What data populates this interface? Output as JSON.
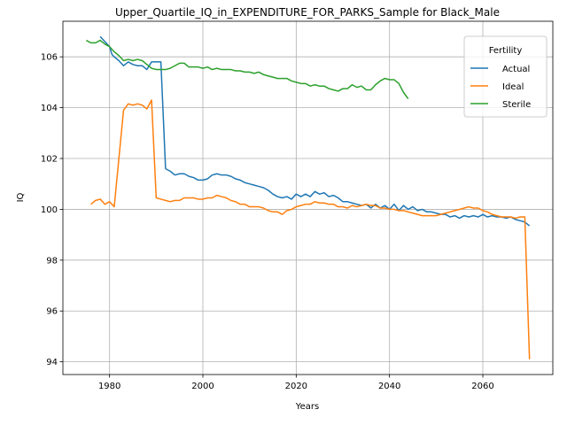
{
  "chart_data": {
    "type": "line",
    "title": "Upper_Quartile_IQ_in_EXPENDITURE_FOR_PARKS_Sample for Black_Male",
    "xlabel": "Years",
    "ylabel": "IQ",
    "xlim": [
      1970,
      2075
    ],
    "ylim": [
      93.5,
      107.4
    ],
    "xticks": [
      1980,
      2000,
      2020,
      2040,
      2060
    ],
    "yticks": [
      94,
      96,
      98,
      100,
      102,
      104,
      106
    ],
    "grid": true,
    "legend": {
      "title": "Fertility",
      "placement": "top-right"
    },
    "series": [
      {
        "name": "Actual",
        "color": "#1f77b4",
        "points": [
          [
            1978,
            106.8
          ],
          [
            1979,
            106.6
          ],
          [
            1980,
            106.4
          ],
          [
            1980.5,
            106.1
          ],
          [
            1981,
            106.0
          ],
          [
            1982,
            105.85
          ],
          [
            1983,
            105.65
          ],
          [
            1984,
            105.8
          ],
          [
            1985,
            105.7
          ],
          [
            1986,
            105.65
          ],
          [
            1987,
            105.65
          ],
          [
            1988,
            105.5
          ],
          [
            1989,
            105.8
          ],
          [
            1990,
            105.8
          ],
          [
            1991,
            105.8
          ],
          [
            1992,
            101.6
          ],
          [
            1993,
            101.5
          ],
          [
            1994,
            101.35
          ],
          [
            1995,
            101.4
          ],
          [
            1996,
            101.4
          ],
          [
            1997,
            101.3
          ],
          [
            1998,
            101.25
          ],
          [
            1999,
            101.15
          ],
          [
            2000,
            101.15
          ],
          [
            2001,
            101.2
          ],
          [
            2002,
            101.35
          ],
          [
            2003,
            101.4
          ],
          [
            2004,
            101.35
          ],
          [
            2005,
            101.35
          ],
          [
            2006,
            101.3
          ],
          [
            2007,
            101.2
          ],
          [
            2008,
            101.15
          ],
          [
            2009,
            101.05
          ],
          [
            2010,
            101.0
          ],
          [
            2011,
            100.95
          ],
          [
            2012,
            100.9
          ],
          [
            2013,
            100.85
          ],
          [
            2014,
            100.75
          ],
          [
            2015,
            100.6
          ],
          [
            2016,
            100.5
          ],
          [
            2017,
            100.45
          ],
          [
            2018,
            100.5
          ],
          [
            2019,
            100.4
          ],
          [
            2020,
            100.6
          ],
          [
            2021,
            100.5
          ],
          [
            2022,
            100.6
          ],
          [
            2023,
            100.5
          ],
          [
            2024,
            100.7
          ],
          [
            2025,
            100.6
          ],
          [
            2026,
            100.65
          ],
          [
            2027,
            100.5
          ],
          [
            2028,
            100.55
          ],
          [
            2029,
            100.45
          ],
          [
            2030,
            100.3
          ],
          [
            2031,
            100.3
          ],
          [
            2032,
            100.25
          ],
          [
            2033,
            100.2
          ],
          [
            2034,
            100.15
          ],
          [
            2035,
            100.2
          ],
          [
            2036,
            100.05
          ],
          [
            2037,
            100.2
          ],
          [
            2038,
            100.05
          ],
          [
            2039,
            100.15
          ],
          [
            2040,
            100.0
          ],
          [
            2041,
            100.2
          ],
          [
            2042,
            99.95
          ],
          [
            2043,
            100.15
          ],
          [
            2044,
            100.0
          ],
          [
            2045,
            100.1
          ],
          [
            2046,
            99.95
          ],
          [
            2047,
            100.0
          ],
          [
            2048,
            99.9
          ],
          [
            2049,
            99.9
          ],
          [
            2050,
            99.85
          ],
          [
            2051,
            99.8
          ],
          [
            2052,
            99.8
          ],
          [
            2053,
            99.7
          ],
          [
            2054,
            99.75
          ],
          [
            2055,
            99.65
          ],
          [
            2056,
            99.75
          ],
          [
            2057,
            99.7
          ],
          [
            2058,
            99.75
          ],
          [
            2059,
            99.7
          ],
          [
            2060,
            99.8
          ],
          [
            2061,
            99.7
          ],
          [
            2062,
            99.75
          ],
          [
            2063,
            99.7
          ],
          [
            2064,
            99.7
          ],
          [
            2065,
            99.65
          ],
          [
            2066,
            99.7
          ],
          [
            2067,
            99.6
          ],
          [
            2068,
            99.55
          ],
          [
            2069,
            99.5
          ],
          [
            2070,
            99.35
          ]
        ]
      },
      {
        "name": "Ideal",
        "color": "#ff7f0e",
        "points": [
          [
            1976,
            100.2
          ],
          [
            1977,
            100.35
          ],
          [
            1978,
            100.4
          ],
          [
            1979,
            100.2
          ],
          [
            1980,
            100.3
          ],
          [
            1981,
            100.1
          ],
          [
            1982,
            102.0
          ],
          [
            1983,
            103.9
          ],
          [
            1984,
            104.15
          ],
          [
            1985,
            104.1
          ],
          [
            1986,
            104.15
          ],
          [
            1987,
            104.1
          ],
          [
            1988,
            103.95
          ],
          [
            1989,
            104.3
          ],
          [
            1990,
            100.45
          ],
          [
            1991,
            100.4
          ],
          [
            1992,
            100.35
          ],
          [
            1993,
            100.3
          ],
          [
            1994,
            100.35
          ],
          [
            1995,
            100.35
          ],
          [
            1996,
            100.45
          ],
          [
            1997,
            100.45
          ],
          [
            1998,
            100.45
          ],
          [
            1999,
            100.4
          ],
          [
            2000,
            100.4
          ],
          [
            2001,
            100.45
          ],
          [
            2002,
            100.45
          ],
          [
            2003,
            100.55
          ],
          [
            2004,
            100.5
          ],
          [
            2005,
            100.45
          ],
          [
            2006,
            100.35
          ],
          [
            2007,
            100.3
          ],
          [
            2008,
            100.2
          ],
          [
            2009,
            100.2
          ],
          [
            2010,
            100.1
          ],
          [
            2011,
            100.1
          ],
          [
            2012,
            100.1
          ],
          [
            2013,
            100.05
          ],
          [
            2014,
            99.95
          ],
          [
            2015,
            99.9
          ],
          [
            2016,
            99.9
          ],
          [
            2017,
            99.8
          ],
          [
            2018,
            99.95
          ],
          [
            2019,
            100.0
          ],
          [
            2020,
            100.1
          ],
          [
            2021,
            100.15
          ],
          [
            2022,
            100.2
          ],
          [
            2023,
            100.2
          ],
          [
            2024,
            100.3
          ],
          [
            2025,
            100.25
          ],
          [
            2026,
            100.25
          ],
          [
            2027,
            100.2
          ],
          [
            2028,
            100.2
          ],
          [
            2029,
            100.1
          ],
          [
            2030,
            100.1
          ],
          [
            2031,
            100.05
          ],
          [
            2032,
            100.15
          ],
          [
            2033,
            100.1
          ],
          [
            2034,
            100.15
          ],
          [
            2035,
            100.2
          ],
          [
            2036,
            100.15
          ],
          [
            2037,
            100.15
          ],
          [
            2038,
            100.05
          ],
          [
            2039,
            100.05
          ],
          [
            2040,
            100.0
          ],
          [
            2041,
            100.0
          ],
          [
            2042,
            99.95
          ],
          [
            2043,
            99.95
          ],
          [
            2044,
            99.9
          ],
          [
            2045,
            99.85
          ],
          [
            2046,
            99.8
          ],
          [
            2047,
            99.75
          ],
          [
            2048,
            99.75
          ],
          [
            2049,
            99.75
          ],
          [
            2050,
            99.75
          ],
          [
            2051,
            99.8
          ],
          [
            2052,
            99.85
          ],
          [
            2053,
            99.9
          ],
          [
            2054,
            99.95
          ],
          [
            2055,
            100.0
          ],
          [
            2056,
            100.05
          ],
          [
            2057,
            100.1
          ],
          [
            2058,
            100.05
          ],
          [
            2059,
            100.05
          ],
          [
            2060,
            99.95
          ],
          [
            2061,
            99.9
          ],
          [
            2062,
            99.8
          ],
          [
            2063,
            99.75
          ],
          [
            2064,
            99.7
          ],
          [
            2065,
            99.7
          ],
          [
            2066,
            99.7
          ],
          [
            2067,
            99.65
          ],
          [
            2068,
            99.7
          ],
          [
            2069,
            99.7
          ],
          [
            2070,
            94.1
          ]
        ]
      },
      {
        "name": "Sterile",
        "color": "#2ca02c",
        "points": [
          [
            1975,
            106.65
          ],
          [
            1976,
            106.55
          ],
          [
            1977,
            106.55
          ],
          [
            1978,
            106.65
          ],
          [
            1979,
            106.5
          ],
          [
            1980,
            106.4
          ],
          [
            1981,
            106.2
          ],
          [
            1982,
            106.05
          ],
          [
            1983,
            105.85
          ],
          [
            1984,
            105.9
          ],
          [
            1985,
            105.85
          ],
          [
            1986,
            105.9
          ],
          [
            1987,
            105.85
          ],
          [
            1988,
            105.7
          ],
          [
            1989,
            105.55
          ],
          [
            1990,
            105.5
          ],
          [
            1991,
            105.5
          ],
          [
            1992,
            105.5
          ],
          [
            1993,
            105.55
          ],
          [
            1994,
            105.65
          ],
          [
            1995,
            105.75
          ],
          [
            1996,
            105.75
          ],
          [
            1997,
            105.6
          ],
          [
            1998,
            105.6
          ],
          [
            1999,
            105.6
          ],
          [
            2000,
            105.55
          ],
          [
            2001,
            105.6
          ],
          [
            2002,
            105.5
          ],
          [
            2003,
            105.55
          ],
          [
            2004,
            105.5
          ],
          [
            2005,
            105.5
          ],
          [
            2006,
            105.5
          ],
          [
            2007,
            105.45
          ],
          [
            2008,
            105.45
          ],
          [
            2009,
            105.4
          ],
          [
            2010,
            105.4
          ],
          [
            2011,
            105.35
          ],
          [
            2012,
            105.4
          ],
          [
            2013,
            105.3
          ],
          [
            2014,
            105.25
          ],
          [
            2015,
            105.2
          ],
          [
            2016,
            105.15
          ],
          [
            2017,
            105.15
          ],
          [
            2018,
            105.15
          ],
          [
            2019,
            105.05
          ],
          [
            2020,
            105.0
          ],
          [
            2021,
            104.95
          ],
          [
            2022,
            104.95
          ],
          [
            2023,
            104.85
          ],
          [
            2024,
            104.9
          ],
          [
            2025,
            104.85
          ],
          [
            2026,
            104.85
          ],
          [
            2027,
            104.75
          ],
          [
            2028,
            104.7
          ],
          [
            2029,
            104.65
          ],
          [
            2030,
            104.75
          ],
          [
            2031,
            104.75
          ],
          [
            2032,
            104.9
          ],
          [
            2033,
            104.8
          ],
          [
            2034,
            104.85
          ],
          [
            2035,
            104.7
          ],
          [
            2036,
            104.7
          ],
          [
            2037,
            104.9
          ],
          [
            2038,
            105.05
          ],
          [
            2039,
            105.15
          ],
          [
            2040,
            105.1
          ],
          [
            2041,
            105.1
          ],
          [
            2042,
            104.95
          ],
          [
            2043,
            104.6
          ],
          [
            2044,
            104.35
          ]
        ]
      }
    ]
  }
}
